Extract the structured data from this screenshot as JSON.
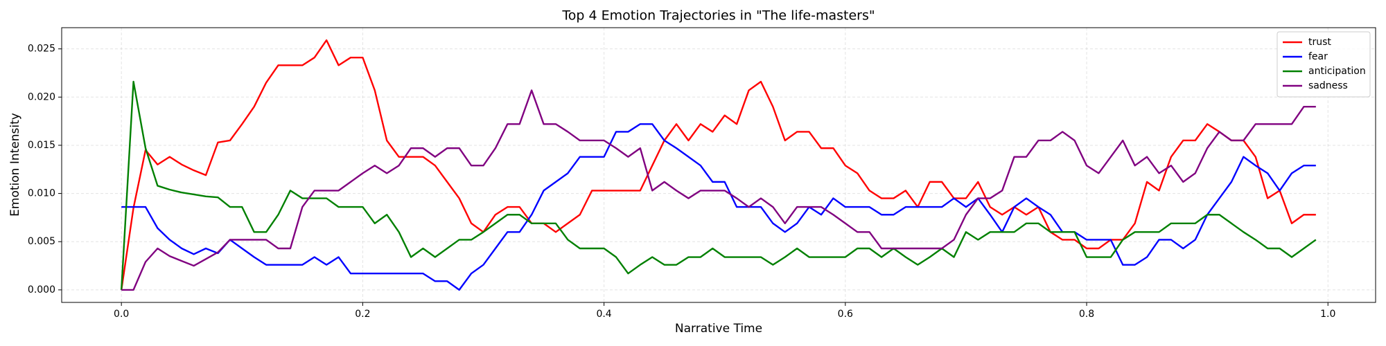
{
  "chart_data": {
    "type": "line",
    "title": "Top 4 Emotion Trajectories in \"The life-masters\"",
    "x_label": "Narrative Time",
    "y_label": "Emotion Intensity",
    "x": [
      0,
      0.01,
      0.02,
      0.03,
      0.04,
      0.05,
      0.06,
      0.07,
      0.08,
      0.09,
      0.1,
      0.11,
      0.12,
      0.13,
      0.14,
      0.15,
      0.16,
      0.17,
      0.18,
      0.19,
      0.2,
      0.21,
      0.22,
      0.23,
      0.24,
      0.25,
      0.26,
      0.27,
      0.28,
      0.29,
      0.3,
      0.31,
      0.32,
      0.33,
      0.34,
      0.35,
      0.36,
      0.37,
      0.38,
      0.39,
      0.4,
      0.41,
      0.42,
      0.43,
      0.44,
      0.45,
      0.46,
      0.47,
      0.48,
      0.49,
      0.5,
      0.51,
      0.52,
      0.53,
      0.54,
      0.55,
      0.56,
      0.57,
      0.58,
      0.59,
      0.6,
      0.61,
      0.62,
      0.63,
      0.64,
      0.65,
      0.66,
      0.67,
      0.68,
      0.69,
      0.7,
      0.71,
      0.72,
      0.73,
      0.74,
      0.75,
      0.76,
      0.77,
      0.78,
      0.79,
      0.8,
      0.81,
      0.82,
      0.83,
      0.84,
      0.85,
      0.86,
      0.87,
      0.88,
      0.89,
      0.9,
      0.91,
      0.92,
      0.93,
      0.94,
      0.95,
      0.96,
      0.97,
      0.98,
      0.99
    ],
    "series": [
      {
        "name": "trust",
        "color": "#ff0000",
        "values": [
          0,
          0.0085,
          0.0145,
          0.013,
          0.0138,
          0.013,
          0.0124,
          0.0119,
          0.0153,
          0.0155,
          0.0172,
          0.019,
          0.0215,
          0.0233,
          0.0233,
          0.0233,
          0.0241,
          0.0259,
          0.0233,
          0.0241,
          0.0241,
          0.0207,
          0.0155,
          0.0138,
          0.0138,
          0.0138,
          0.0129,
          0.0112,
          0.0095,
          0.0069,
          0.006,
          0.0078,
          0.0086,
          0.0086,
          0.0069,
          0.0069,
          0.006,
          0.0069,
          0.0078,
          0.0103,
          0.0103,
          0.0103,
          0.0103,
          0.0103,
          0.0129,
          0.0155,
          0.0172,
          0.0155,
          0.0172,
          0.0164,
          0.0181,
          0.0172,
          0.0207,
          0.0216,
          0.019,
          0.0155,
          0.0164,
          0.0164,
          0.0147,
          0.0147,
          0.0129,
          0.0121,
          0.0103,
          0.0095,
          0.0095,
          0.0103,
          0.0086,
          0.0112,
          0.0112,
          0.0095,
          0.0095,
          0.0112,
          0.0086,
          0.0078,
          0.0086,
          0.0078,
          0.0086,
          0.006,
          0.0052,
          0.0052,
          0.0043,
          0.0043,
          0.0052,
          0.0052,
          0.0069,
          0.0112,
          0.0103,
          0.0138,
          0.0155,
          0.0155,
          0.0172,
          0.0164,
          0.0155,
          0.0155,
          0.0138,
          0.0095,
          0.0103,
          0.0069,
          0.0078,
          0.0078
        ]
      },
      {
        "name": "fear",
        "color": "#0000ff",
        "values": [
          0.0086,
          0.0086,
          0.0086,
          0.0064,
          0.0052,
          0.0043,
          0.0037,
          0.0043,
          0.0038,
          0.0052,
          0.0043,
          0.0034,
          0.0026,
          0.0026,
          0.0026,
          0.0026,
          0.0034,
          0.0026,
          0.0034,
          0.0017,
          0.0017,
          0.0017,
          0.0017,
          0.0017,
          0.0017,
          0.0017,
          0.0009,
          0.0009,
          0,
          0.0017,
          0.0026,
          0.0043,
          0.006,
          0.006,
          0.0078,
          0.0103,
          0.0112,
          0.0121,
          0.0138,
          0.0138,
          0.0138,
          0.0164,
          0.0164,
          0.0172,
          0.0172,
          0.0155,
          0.0147,
          0.0138,
          0.0129,
          0.0112,
          0.0112,
          0.0086,
          0.0086,
          0.0086,
          0.0069,
          0.006,
          0.0069,
          0.0086,
          0.0078,
          0.0095,
          0.0086,
          0.0086,
          0.0086,
          0.0078,
          0.0078,
          0.0086,
          0.0086,
          0.0086,
          0.0086,
          0.0095,
          0.0086,
          0.0095,
          0.0078,
          0.006,
          0.0086,
          0.0095,
          0.0086,
          0.0078,
          0.006,
          0.006,
          0.0052,
          0.0052,
          0.0052,
          0.0026,
          0.0026,
          0.0034,
          0.0052,
          0.0052,
          0.0043,
          0.0052,
          0.0078,
          0.0095,
          0.0112,
          0.0138,
          0.0129,
          0.0121,
          0.0103,
          0.0121,
          0.0129,
          0.0129
        ]
      },
      {
        "name": "anticipation",
        "color": "#008000",
        "values": [
          0,
          0.0216,
          0.0147,
          0.0108,
          0.0104,
          0.0101,
          0.0099,
          0.0097,
          0.0096,
          0.0086,
          0.0086,
          0.006,
          0.006,
          0.0078,
          0.0103,
          0.0095,
          0.0095,
          0.0095,
          0.0086,
          0.0086,
          0.0086,
          0.0069,
          0.0078,
          0.006,
          0.0034,
          0.0043,
          0.0034,
          0.0043,
          0.0052,
          0.0052,
          0.006,
          0.0069,
          0.0078,
          0.0078,
          0.0069,
          0.0069,
          0.0069,
          0.0052,
          0.0043,
          0.0043,
          0.0043,
          0.0034,
          0.0017,
          0.0026,
          0.0034,
          0.0026,
          0.0026,
          0.0034,
          0.0034,
          0.0043,
          0.0034,
          0.0034,
          0.0034,
          0.0034,
          0.0026,
          0.0034,
          0.0043,
          0.0034,
          0.0034,
          0.0034,
          0.0034,
          0.0043,
          0.0043,
          0.0034,
          0.0043,
          0.0034,
          0.0026,
          0.0034,
          0.0043,
          0.0034,
          0.006,
          0.0052,
          0.006,
          0.006,
          0.006,
          0.0069,
          0.0069,
          0.006,
          0.006,
          0.006,
          0.0034,
          0.0034,
          0.0034,
          0.0052,
          0.006,
          0.006,
          0.006,
          0.0069,
          0.0069,
          0.0069,
          0.0078,
          0.0078,
          0.0069,
          0.006,
          0.0052,
          0.0043,
          0.0043,
          0.0034,
          0.0043,
          0.0052
        ]
      },
      {
        "name": "sadness",
        "color": "#800080",
        "values": [
          0,
          0,
          0.0029,
          0.0043,
          0.0035,
          0.003,
          0.0025,
          0.0032,
          0.0039,
          0.0052,
          0.0052,
          0.0052,
          0.0052,
          0.0043,
          0.0043,
          0.0086,
          0.0103,
          0.0103,
          0.0103,
          0.0112,
          0.0121,
          0.0129,
          0.0121,
          0.0129,
          0.0147,
          0.0147,
          0.0138,
          0.0147,
          0.0147,
          0.0129,
          0.0129,
          0.0147,
          0.0172,
          0.0172,
          0.0207,
          0.0172,
          0.0172,
          0.0164,
          0.0155,
          0.0155,
          0.0155,
          0.0147,
          0.0138,
          0.0147,
          0.0103,
          0.0112,
          0.0103,
          0.0095,
          0.0103,
          0.0103,
          0.0103,
          0.0095,
          0.0086,
          0.0095,
          0.0086,
          0.0069,
          0.0086,
          0.0086,
          0.0086,
          0.0078,
          0.0069,
          0.006,
          0.006,
          0.0043,
          0.0043,
          0.0043,
          0.0043,
          0.0043,
          0.0043,
          0.0052,
          0.0078,
          0.0095,
          0.0095,
          0.0103,
          0.0138,
          0.0138,
          0.0155,
          0.0155,
          0.0164,
          0.0155,
          0.0129,
          0.0121,
          0.0138,
          0.0155,
          0.0129,
          0.0138,
          0.0121,
          0.0129,
          0.0112,
          0.0121,
          0.0147,
          0.0164,
          0.0155,
          0.0155,
          0.0172,
          0.0172,
          0.0172,
          0.0172,
          0.019,
          0.019
        ]
      }
    ],
    "xlim": [
      -0.0495,
      1.0395
    ],
    "ylim": [
      -0.0013,
      0.0272
    ],
    "xticks": [
      {
        "value": 0,
        "label": "0.0"
      },
      0.2,
      0.4,
      0.6,
      0.8,
      {
        "value": 1,
        "label": "1.0"
      }
    ],
    "yticks": [
      {
        "value": 0,
        "label": "0.000"
      },
      {
        "value": 0.005,
        "label": "0.005"
      },
      {
        "value": 0.01,
        "label": "0.010"
      },
      {
        "value": 0.015,
        "label": "0.015"
      },
      {
        "value": 0.02,
        "label": "0.020"
      },
      {
        "value": 0.025,
        "label": "0.025"
      }
    ],
    "grid": true,
    "legend": "upper right"
  }
}
